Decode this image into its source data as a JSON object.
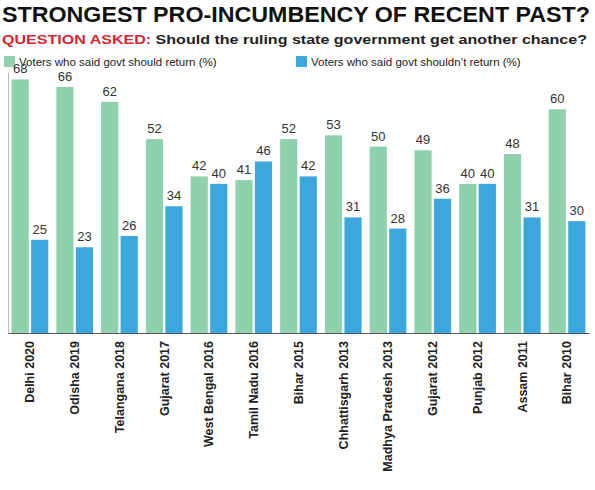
{
  "chart_data": {
    "type": "bar",
    "title": "STRONGEST PRO-INCUMBENCY OF RECENT PAST?",
    "subtitle": "QUESTION ASKED: Should the ruling state government get another chance?",
    "categories": [
      "Delhi 2020",
      "Odisha 2019",
      "Telangana 2018",
      "Gujarat 2017",
      "West Bengal 2016",
      "Tamil Nadu 2016",
      "Bihar 2015",
      "Chhattisgarh 2013",
      "Madhya Pradesh 2013",
      "Gujarat 2012",
      "Punjab 2012",
      "Assam 2011",
      "Bihar 2010"
    ],
    "series": [
      {
        "name": "Voters who said govt should return (%)",
        "color": "#8fd0ad",
        "values": [
          68,
          66,
          62,
          52,
          42,
          41,
          52,
          53,
          50,
          49,
          40,
          48,
          60
        ]
      },
      {
        "name": "Voters who said govt shouldn’t return (%)",
        "color": "#3ba7dd",
        "values": [
          25,
          23,
          26,
          34,
          40,
          46,
          42,
          31,
          28,
          36,
          40,
          31,
          30
        ]
      }
    ],
    "ylim": [
      0,
      70
    ],
    "yticks": [],
    "data_labels": true,
    "tick_labels": "x",
    "legend": "top-left",
    "grid": false
  }
}
